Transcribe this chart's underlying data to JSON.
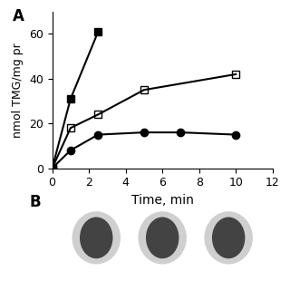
{
  "series": [
    {
      "label": "filled_square",
      "x": [
        0,
        1,
        2.5
      ],
      "y": [
        0,
        31,
        61
      ],
      "marker": "s",
      "fillstyle": "full",
      "color": "black",
      "linewidth": 1.5,
      "markersize": 6
    },
    {
      "label": "open_square",
      "x": [
        0,
        1,
        2.5,
        5,
        10
      ],
      "y": [
        0,
        18,
        24,
        35,
        42
      ],
      "marker": "s",
      "fillstyle": "none",
      "color": "black",
      "linewidth": 1.5,
      "markersize": 6
    },
    {
      "label": "filled_circle",
      "x": [
        0,
        1,
        2.5,
        5,
        7,
        10
      ],
      "y": [
        0,
        8,
        15,
        16,
        16,
        15
      ],
      "marker": "o",
      "fillstyle": "full",
      "color": "black",
      "linewidth": 1.5,
      "markersize": 6
    }
  ],
  "xlabel": "Time, min",
  "ylabel": "nmol TMG/mg pr",
  "xlim": [
    0,
    12
  ],
  "ylim": [
    0,
    70
  ],
  "xticks": [
    0,
    2,
    4,
    6,
    8,
    10,
    12
  ],
  "yticks": [
    0,
    20,
    40,
    60
  ],
  "panel_label": "B",
  "background_color": "#ffffff",
  "figsize": [
    3.2,
    3.2
  ],
  "dpi": 100
}
